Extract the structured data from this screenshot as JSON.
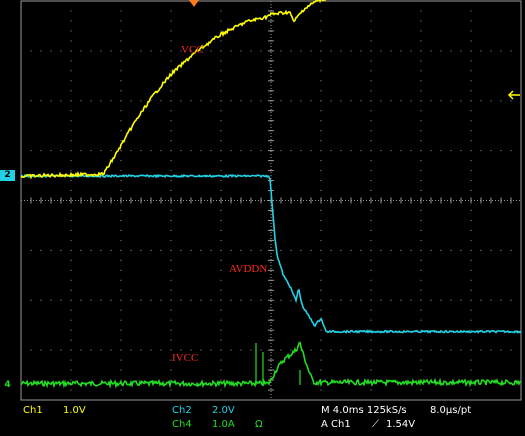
{
  "colors": {
    "ch1": "#ffff00",
    "ch2": "#21d2e6",
    "ch4": "#22dd22",
    "annotation": "#ff2a1e",
    "trigger_marker": "#ff7a1a",
    "graticule": "#9a9a9a"
  },
  "annotations": {
    "vcc": "VCC",
    "avddn": "AVDDN",
    "ivcc": "IVCC"
  },
  "channel_markers": {
    "ch2": "2",
    "ch4": "4"
  },
  "status_bar": {
    "ch1_name": "Ch1",
    "ch1_scale": "1.0V",
    "ch2_name": "Ch2",
    "ch2_scale": "2.0V",
    "ch4_name": "Ch4",
    "ch4_scale": "1.0A",
    "ch4_unit": "Ω",
    "timebase": "M 4.0ms 125kS/s",
    "sample_interval": "8.0μs/pt",
    "trigger": "A Ch1",
    "trigger_slope_icon": "rising-edge-icon",
    "trigger_level": "1.54V"
  },
  "chart_data": {
    "type": "line",
    "grid": true,
    "x_unit": "ms",
    "x_divisions": 10,
    "ms_per_div": 4.0,
    "xlim": [
      0,
      40
    ],
    "y_divisions": 8,
    "series": [
      {
        "key": "ch1",
        "name": "VCC",
        "y_unit": "div",
        "x": [
          0,
          2,
          4,
          6.6,
          7.6,
          9.0,
          10.5,
          12.0,
          14.0,
          16.0,
          18.0,
          19.6,
          20.0,
          21.5,
          21.8,
          22.6,
          23.5,
          25,
          28,
          32,
          36,
          40
        ],
        "y": [
          -0.05,
          -0.03,
          -0.02,
          0.0,
          0.4,
          1.0,
          1.55,
          2.0,
          2.45,
          2.8,
          3.05,
          3.15,
          3.2,
          3.25,
          3.05,
          3.3,
          3.45,
          3.58,
          3.68,
          3.75,
          3.8,
          3.82
        ]
      },
      {
        "key": "ch2",
        "name": "AVDDN",
        "y_unit": "div",
        "x": [
          0,
          5,
          10,
          15,
          19.9,
          20.1,
          20.3,
          20.5,
          21.0,
          21.5,
          22.0,
          22.2,
          22.5,
          23.0,
          23.5,
          24.0,
          24.4,
          25.0,
          26,
          30,
          35,
          40
        ],
        "y": [
          0.0,
          0.0,
          0.0,
          0.0,
          0.0,
          -0.6,
          -1.2,
          -1.6,
          -2.0,
          -2.2,
          -2.5,
          -2.25,
          -2.6,
          -2.8,
          -3.0,
          -2.85,
          -3.12,
          -3.12,
          -3.12,
          -3.12,
          -3.12,
          -3.12
        ]
      },
      {
        "key": "ch4",
        "name": "IVCC",
        "y_unit": "div",
        "x": [
          0,
          5,
          10,
          15,
          19.8,
          20.0,
          20.4,
          21.0,
          21.5,
          22.0,
          22.3,
          22.6,
          23.0,
          23.3,
          23.5,
          26,
          30,
          35,
          40
        ],
        "y": [
          0.03,
          0.03,
          0.03,
          0.03,
          0.03,
          0.1,
          0.3,
          0.5,
          0.6,
          0.7,
          0.85,
          0.6,
          0.3,
          0.1,
          0.05,
          0.05,
          0.05,
          0.05,
          0.05
        ]
      }
    ]
  }
}
